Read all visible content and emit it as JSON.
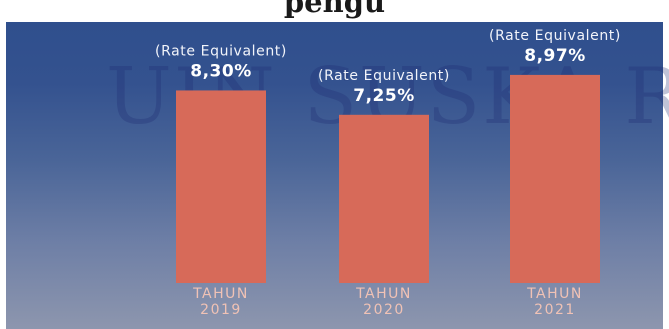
{
  "title": "pengu",
  "watermark": "UIN SUSKA R",
  "colors": {
    "bar": "#d76a59",
    "background_top": "#2f4f8d",
    "background_bottom": "#8d96ae"
  },
  "chart_data": {
    "type": "bar",
    "categories": [
      [
        "TAHUN",
        "2019"
      ],
      [
        "TAHUN",
        "2020"
      ],
      [
        "TAHUN",
        "2021"
      ]
    ],
    "values": [
      8.3,
      7.25,
      8.97
    ],
    "value_labels": [
      "8,30%",
      "7,25%",
      "8,97%"
    ],
    "annotation": "(Rate Equivalent)",
    "grid": false,
    "legend": "none"
  }
}
